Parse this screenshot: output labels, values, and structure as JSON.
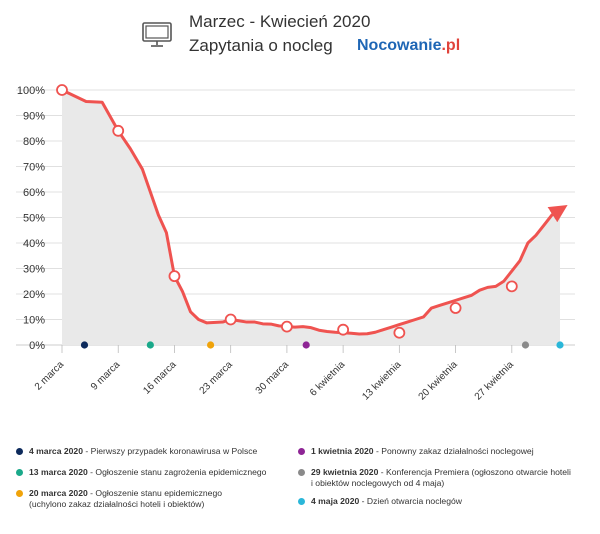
{
  "header": {
    "title_line1": "Marzec - Kwiecień 2020",
    "title_line2": "Zapytania o nocleg",
    "brand_main": "Nocowanie",
    "brand_suffix": ".pl",
    "icon": "monitor-icon"
  },
  "colors": {
    "line": "#ef5350",
    "area": "#e9e9e9",
    "grid": "#d6d6d6",
    "brand_blue": "#1e66b5",
    "brand_red": "#e0433b"
  },
  "chart_data": {
    "type": "area",
    "title": "",
    "xlabel": "",
    "ylabel": "",
    "ylim": [
      0,
      100
    ],
    "y_ticks": [
      "0%",
      "10%",
      "20%",
      "30%",
      "40%",
      "50%",
      "60%",
      "70%",
      "80%",
      "90%",
      "100%"
    ],
    "x_tick_labels": [
      "2 marca",
      "9 marca",
      "16 marca",
      "23 marca",
      "30 marca",
      "6 kwietnia",
      "13 kwietnia",
      "20 kwietnia",
      "27 kwietnia"
    ],
    "x_tick_days": [
      0,
      7,
      14,
      21,
      28,
      35,
      42,
      49,
      56
    ],
    "series": [
      {
        "values_day": [
          0,
          3,
          5,
          7,
          8.5,
          10,
          11,
          12,
          13,
          14,
          15,
          16,
          17,
          18,
          20,
          21,
          22,
          23,
          24,
          25,
          26,
          27,
          28,
          29,
          30,
          31,
          32,
          33,
          34,
          35,
          36,
          37,
          38,
          39,
          40,
          41,
          42,
          43,
          44,
          45,
          46,
          47,
          48,
          49,
          50,
          51,
          52,
          53,
          54,
          55,
          56,
          57,
          58,
          59,
          60,
          61,
          62
        ],
        "values": [
          100,
          95.5,
          95.2,
          84,
          77,
          69,
          60,
          51,
          44,
          27,
          21,
          13,
          10,
          8.7,
          9,
          10,
          9.5,
          9,
          9,
          8.3,
          8.2,
          7.5,
          7.2,
          7,
          7.2,
          6.8,
          5.8,
          5.3,
          5,
          4.8,
          4.6,
          4.3,
          4.4,
          5,
          6,
          7,
          8,
          9,
          10,
          11,
          14.5,
          15.5,
          16.5,
          17.5,
          18.5,
          19.5,
          21.5,
          22.6,
          23,
          25,
          29,
          33,
          40,
          43,
          47,
          51,
          53
        ]
      }
    ],
    "markers": [
      {
        "day": 0,
        "value": 100
      },
      {
        "day": 7,
        "value": 84
      },
      {
        "day": 14,
        "value": 27
      },
      {
        "day": 21,
        "value": 10
      },
      {
        "day": 28,
        "value": 7.2
      },
      {
        "day": 35,
        "value": 6
      },
      {
        "day": 42,
        "value": 4.8
      },
      {
        "day": 49,
        "value": 14.5
      },
      {
        "day": 56,
        "value": 23
      }
    ],
    "events": [
      {
        "day": 2.8,
        "color": "#0d2a5c",
        "date": "4 marca 2020",
        "text": " - Pierwszy przypadek koronawirusa w Polsce"
      },
      {
        "day": 11,
        "color": "#1aa98a",
        "date": "13 marca 2020",
        "text": " - Ogłoszenie stanu zagrożenia epidemicznego"
      },
      {
        "day": 18.5,
        "color": "#f0a30a",
        "date": "20 marca 2020",
        "text": " - Ogłoszenie stanu epidemicznego",
        "text2": "(uchylono zakaz działalności hoteli i obiektów)"
      },
      {
        "day": 30.4,
        "color": "#8e2595",
        "date": "1 kwietnia 2020",
        "text": " - Ponowny zakaz działalności noclegowej"
      },
      {
        "day": 57.7,
        "color": "#8a8a8a",
        "date": "29 kwietnia 2020",
        "text": " - Konferencja Premiera (ogłoszono otwarcie hoteli",
        "text2": "i obiektów noclegowych od 4 maja)"
      },
      {
        "day": 62,
        "color": "#2ab7d9",
        "date": "4 maja 2020",
        "text": " - Dzień otwarcia noclegów"
      }
    ]
  },
  "legend": [
    {
      "date": "4 marca 2020",
      "text": " - Pierwszy przypadek koronawirusa w Polsce",
      "text2": ""
    },
    {
      "date": "13 marca 2020",
      "text": " - Ogłoszenie stanu zagrożenia epidemicznego",
      "text2": ""
    },
    {
      "date": "20 marca 2020",
      "text": " - Ogłoszenie stanu epidemicznego",
      "text2": "(uchylono zakaz działalności hoteli i obiektów)"
    },
    {
      "date": "1 kwietnia 2020",
      "text": " - Ponowny zakaz działalności noclegowej",
      "text2": ""
    },
    {
      "date": "29 kwietnia 2020",
      "text": " - Konferencja Premiera (ogłoszono otwarcie hoteli",
      "text2": "i obiektów noclegowych od 4 maja)"
    },
    {
      "date": "4 maja 2020",
      "text": " - Dzień otwarcia noclegów",
      "text2": ""
    }
  ]
}
